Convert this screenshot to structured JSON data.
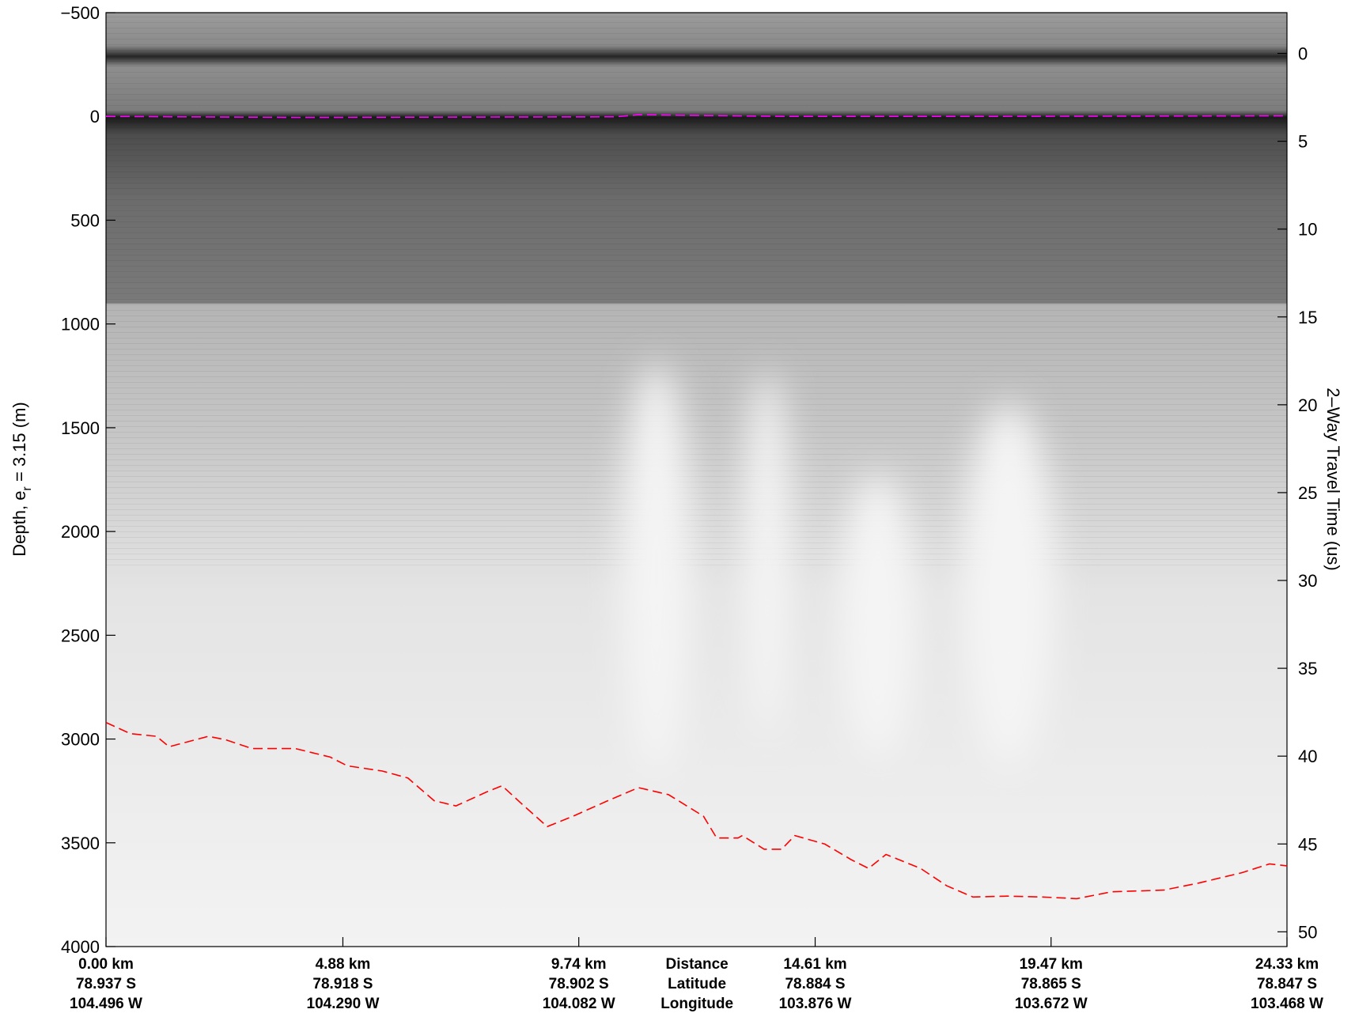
{
  "chart_data": {
    "type": "line",
    "ylabel": [
      "Depth, e",
      "r",
      " = 3.15 (m)"
    ],
    "y2label": "2–Way Travel Time (us)",
    "xlim": [
      0,
      24.33
    ],
    "xticks": [
      {
        "value": 0,
        "label": "0.00 km"
      },
      {
        "value": 4.88,
        "label": "4.88 km"
      },
      {
        "value": 9.74,
        "label": "9.74 km"
      },
      {
        "value": 14.61,
        "label": "14.61 km"
      },
      {
        "value": 19.47,
        "label": "19.47 km"
      },
      {
        "value": 24.33,
        "label": "24.33 km"
      }
    ],
    "latitudes": [
      "78.937 S",
      "78.918 S",
      "78.902 S",
      "78.884 S",
      "78.865 S",
      "78.847 S"
    ],
    "longitudes": [
      "104.496 W",
      "104.290 W",
      "104.082 W",
      "103.876 W",
      "103.672 W",
      "103.468 W"
    ],
    "x_axis_names": [
      "Distance",
      "Latitude",
      "Longitude"
    ],
    "ylim": [
      -500,
      4000
    ],
    "yticks": [
      {
        "value": -500,
        "label": "−500"
      },
      0,
      500,
      1000,
      1500,
      2000,
      2500,
      3000,
      3500,
      4000
    ],
    "y2lim": [
      -2.32,
      50.84
    ],
    "y2ticks": [
      0,
      5,
      10,
      15,
      20,
      25,
      30,
      35,
      40,
      45,
      50
    ],
    "series": [
      {
        "color": "#ff00ff",
        "linestyle": "dashed",
        "x": [
          0,
          4,
          8,
          10.5,
          10.97,
          14,
          18,
          22,
          24.33
        ],
        "values": [
          0,
          5,
          3,
          2,
          -8,
          0,
          0,
          -2,
          -3
        ]
      },
      {
        "color": "#ff0000",
        "linestyle": "dashed",
        "x": [
          0,
          0.5,
          1.04,
          1.3,
          2.11,
          2.47,
          3.01,
          3.9,
          4.62,
          4.97,
          5.69,
          6.22,
          6.76,
          7.21,
          7.84,
          8.16,
          8.55,
          9.09,
          9.62,
          10.34,
          10.97,
          11.59,
          12.31,
          12.58,
          13.02,
          13.11,
          13.56,
          13.92,
          14.19,
          14.81,
          15.35,
          15.71,
          16.07,
          16.78,
          17.32,
          17.86,
          18.57,
          19.29,
          20.0,
          20.72,
          21.79,
          22.51,
          23.4,
          23.97,
          24.33
        ],
        "values": [
          2920,
          2974,
          2987,
          3037,
          2987,
          3004,
          3046,
          3046,
          3087,
          3129,
          3154,
          3188,
          3297,
          3322,
          3255,
          3225,
          3309,
          3422,
          3372,
          3297,
          3234,
          3268,
          3372,
          3477,
          3477,
          3465,
          3531,
          3531,
          3465,
          3506,
          3581,
          3623,
          3556,
          3623,
          3707,
          3761,
          3757,
          3761,
          3769,
          3736,
          3728,
          3694,
          3644,
          3602,
          3611
        ]
      }
    ]
  }
}
